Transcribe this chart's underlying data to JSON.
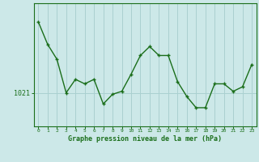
{
  "x": [
    0,
    1,
    2,
    3,
    4,
    5,
    6,
    7,
    8,
    9,
    10,
    11,
    12,
    13,
    14,
    15,
    16,
    17,
    18,
    19,
    20,
    21,
    22,
    23
  ],
  "y": [
    1030.5,
    1027.5,
    1025.5,
    1021.0,
    1022.8,
    1022.2,
    1022.8,
    1019.5,
    1020.8,
    1021.2,
    1023.5,
    1026.0,
    1027.2,
    1026.0,
    1026.0,
    1022.5,
    1020.5,
    1019.0,
    1019.0,
    1022.2,
    1022.2,
    1021.2,
    1021.8,
    1024.8
  ],
  "ytick_value": 1021,
  "ylabel_text": "1021",
  "xlabel": "Graphe pression niveau de la mer (hPa)",
  "line_color": "#1a6e1a",
  "marker_color": "#1a6e1a",
  "bg_color": "#cce8e8",
  "grid_color": "#aad0d0",
  "axis_color": "#1a6e1a",
  "tick_color": "#1a6e1a",
  "label_color": "#1a6e1a",
  "ylim": [
    1016.5,
    1033.0
  ],
  "xlim": [
    -0.5,
    23.5
  ]
}
